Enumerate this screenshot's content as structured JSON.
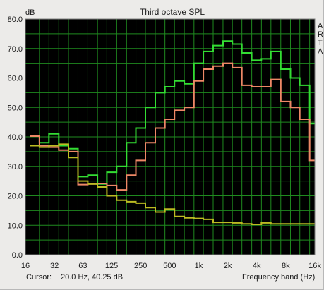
{
  "chart_data": {
    "type": "line",
    "title": "Third octave SPL",
    "ylabel": "dB",
    "xlabel": "Frequency band (Hz)",
    "ylim": [
      0,
      80
    ],
    "yticks": [
      "0.0",
      "10.0",
      "20.0",
      "30.0",
      "40.0",
      "50.0",
      "60.0",
      "70.0",
      "80.0"
    ],
    "xscale": "log",
    "xlim": [
      16,
      16000
    ],
    "xticks": [
      {
        "label": "16",
        "value": 16
      },
      {
        "label": "32",
        "value": 32
      },
      {
        "label": "63",
        "value": 63
      },
      {
        "label": "125",
        "value": 125
      },
      {
        "label": "250",
        "value": 250
      },
      {
        "label": "500",
        "value": 500
      },
      {
        "label": "1k",
        "value": 1000
      },
      {
        "label": "2k",
        "value": 2000
      },
      {
        "label": "4k",
        "value": 4000
      },
      {
        "label": "8k",
        "value": 8000
      },
      {
        "label": "16k",
        "value": 16000
      }
    ],
    "grid": true,
    "bands": [
      20,
      25,
      31.5,
      40,
      50,
      63,
      80,
      100,
      125,
      160,
      200,
      250,
      315,
      400,
      500,
      630,
      800,
      1000,
      1250,
      1600,
      2000,
      2500,
      3150,
      4000,
      5000,
      6300,
      8000,
      10000,
      12500,
      16000
    ],
    "series": [
      {
        "color": "#33dd33",
        "values": [
          40.25,
          38,
          41,
          37,
          36,
          26.5,
          27,
          24,
          28,
          30,
          38,
          43,
          50,
          55,
          57,
          59,
          58,
          65,
          69,
          71,
          72.5,
          71.5,
          68.5,
          66,
          66.5,
          69,
          63,
          60,
          57.5,
          44.5
        ]
      },
      {
        "color": "#ee8866",
        "values": [
          40.25,
          37,
          36.5,
          35.5,
          35,
          23.8,
          24,
          24.2,
          23.5,
          22,
          27,
          32,
          38,
          43,
          46,
          49,
          50,
          59,
          63,
          64,
          65,
          63.5,
          57.5,
          57,
          57,
          59.5,
          52,
          50,
          46,
          32
        ]
      },
      {
        "color": "#bbbb22",
        "values": [
          37,
          36.5,
          37,
          37.5,
          33,
          25,
          24,
          23,
          20,
          18.5,
          18,
          17.5,
          16,
          14.5,
          15.5,
          13,
          12.5,
          12.3,
          12,
          11,
          11,
          10.8,
          10.5,
          10.3,
          10.8,
          10.5,
          10.5,
          10.5,
          10.5,
          10.5
        ]
      }
    ],
    "side_letters": [
      "A",
      "R",
      "T",
      "A"
    ]
  },
  "status": {
    "cursor_label": "Cursor:",
    "cursor_value": "20.0 Hz, 40.25 dB"
  }
}
